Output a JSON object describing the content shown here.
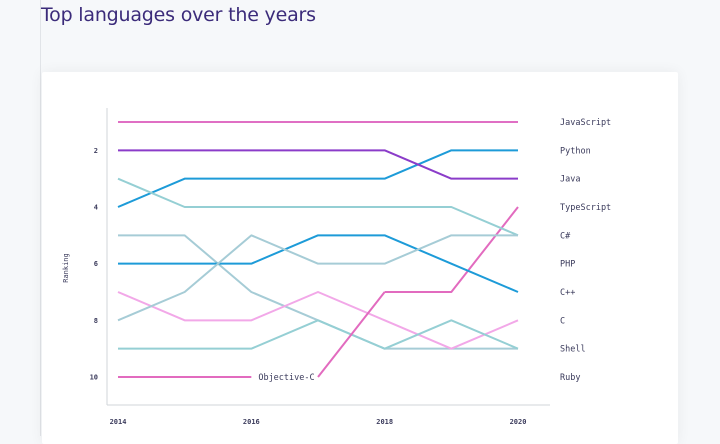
{
  "page": {
    "title": "Top languages over the years"
  },
  "chart_data": {
    "type": "line",
    "title": "",
    "xlabel": "",
    "ylabel": "Ranking",
    "x": [
      2014,
      2015,
      2016,
      2017,
      2018,
      2019,
      2020
    ],
    "x_ticks": [
      "2014",
      "2016",
      "2018",
      "2020"
    ],
    "y_ticks": [
      "2",
      "4",
      "6",
      "8",
      "10"
    ],
    "y_tick_values": [
      2,
      4,
      6,
      8,
      10
    ],
    "ylim": [
      1,
      10
    ],
    "y_inverted": true,
    "grid": false,
    "series": [
      {
        "name": "JavaScript",
        "color": "#e06fc4",
        "values": [
          1,
          1,
          1,
          1,
          1,
          1,
          1
        ]
      },
      {
        "name": "Python",
        "color": "#1d9bd8",
        "values": [
          4,
          3,
          3,
          3,
          3,
          2,
          2
        ]
      },
      {
        "name": "Java",
        "color": "#8b3cc9",
        "values": [
          2,
          2,
          2,
          2,
          2,
          3,
          3
        ]
      },
      {
        "name": "TypeScript",
        "color": "#e26bbf",
        "values": [
          null,
          null,
          null,
          null,
          7,
          7,
          4
        ]
      },
      {
        "name": "C#",
        "color": "#95cfd4",
        "values": [
          3,
          4,
          4,
          4,
          4,
          4,
          5
        ]
      },
      {
        "name": "PHP",
        "color": "#a6ccd6",
        "values": [
          5,
          5,
          7,
          8,
          9,
          9,
          9
        ]
      },
      {
        "name": "C++",
        "color": "#1d9bd8",
        "values": [
          6,
          6,
          6,
          5,
          5,
          6,
          7
        ]
      },
      {
        "name": "C",
        "color": "#f2a8e8",
        "values": [
          7,
          8,
          8,
          7,
          8,
          9,
          8
        ]
      },
      {
        "name": "Shell",
        "color": "#95cfd4",
        "values": [
          9,
          9,
          9,
          8,
          9,
          8,
          9
        ]
      },
      {
        "name": "Ruby",
        "color": "#a6ccd6",
        "values": [
          8,
          7,
          5,
          6,
          6,
          5,
          5
        ]
      },
      {
        "name": "Objective-C",
        "color": "#e26bbf",
        "values": [
          10,
          10,
          10,
          null,
          null,
          null,
          null
        ],
        "inline_label": true
      }
    ],
    "right_labels": [
      "JavaScript",
      "Python",
      "Java",
      "TypeScript",
      "C#",
      "PHP",
      "C++",
      "C",
      "Shell",
      "Ruby"
    ]
  }
}
